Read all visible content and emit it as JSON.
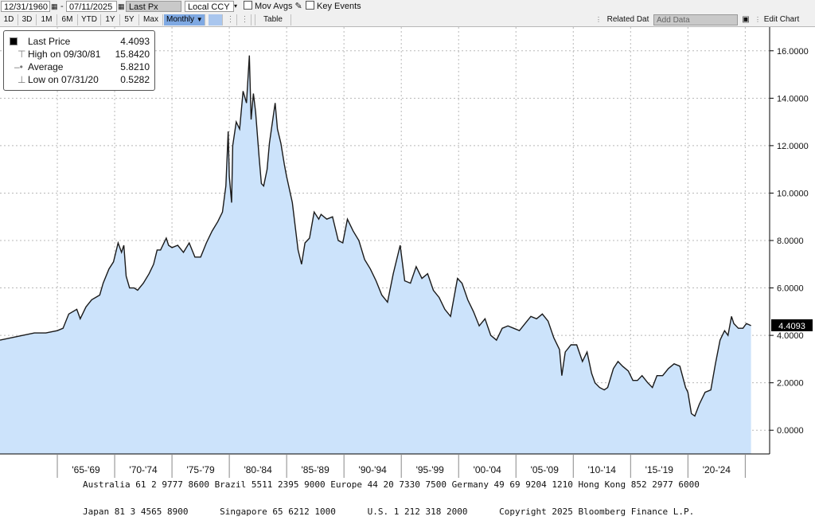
{
  "toolbar": {
    "start_date": "12/31/1960",
    "end_date": "07/11/2025",
    "separator": "-",
    "price_field": "Last Px",
    "currency": "Local CCY",
    "mov_avgs": "Mov Avgs",
    "key_events": "Key Events",
    "ranges": [
      "1D",
      "3D",
      "1M",
      "6M",
      "YTD",
      "1Y",
      "5Y",
      "Max"
    ],
    "frequency": "Monthly",
    "table_label": "Table",
    "related_data": "Related Dat",
    "add_data": "Add Data",
    "edit_chart": "Edit Chart"
  },
  "legend": {
    "last_price_label": "Last Price",
    "last_price_value": "4.4093",
    "high_label": "High on 09/30/81",
    "high_value": "15.8420",
    "average_label": "Average",
    "average_value": "5.8210",
    "low_label": "Low on 07/31/20",
    "low_value": "0.5282"
  },
  "footer": {
    "line1": "Australia 61 2 9777 8600 Brazil 5511 2395 9000 Europe 44 20 7330 7500 Germany 49 69 9204 1210 Hong Kong 852 2977 6000",
    "line2": "Japan 81 3 4565 8900      Singapore 65 6212 1000      U.S. 1 212 318 2000      Copyright 2025 Bloomberg Finance L.P."
  },
  "colors": {
    "area_fill": "#cce3fb",
    "line": "#1a1a1a",
    "grid": "#b8b8b8",
    "last_price_tag": "#000000"
  },
  "chart_data": {
    "type": "area",
    "title": "",
    "xlabel": "",
    "ylabel": "",
    "ylim": [
      -1,
      17
    ],
    "xlim": [
      1960.0,
      2025.6
    ],
    "grid": true,
    "legend_position": "top-left",
    "y_ticks": [
      "0.0000",
      "2.0000",
      "4.0000",
      "6.0000",
      "8.0000",
      "10.0000",
      "12.0000",
      "14.0000",
      "16.0000"
    ],
    "x_periods": [
      "'65-'69",
      "'70-'74",
      "'75-'79",
      "'80-'84",
      "'85-'89",
      "'90-'94",
      "'95-'99",
      "'00-'04",
      "'05-'09",
      "'10-'14",
      "'15-'19",
      "'20-'24"
    ],
    "last_price_tag": "4.4093",
    "series": [
      {
        "x": [
          1960.0,
          1961.0,
          1962.0,
          1963.0,
          1964.0,
          1965.0,
          1965.5,
          1966.0,
          1966.7,
          1967.0,
          1967.5,
          1968.0,
          1968.7,
          1969.0,
          1969.5,
          1969.9,
          1970.3,
          1970.6,
          1970.8,
          1971.0,
          1971.3,
          1971.7,
          1972.0,
          1972.5,
          1973.0,
          1973.4,
          1973.7,
          1974.0,
          1974.5,
          1974.7,
          1975.0,
          1975.5,
          1976.0,
          1976.5,
          1977.0,
          1977.5,
          1978.0,
          1978.5,
          1979.0,
          1979.4,
          1979.7,
          1979.9,
          1980.0,
          1980.2,
          1980.3,
          1980.6,
          1980.9,
          1981.2,
          1981.5,
          1981.75,
          1981.9,
          1982.1,
          1982.3,
          1982.6,
          1982.8,
          1983.0,
          1983.3,
          1983.5,
          1984.0,
          1984.2,
          1984.5,
          1984.8,
          1985.0,
          1985.5,
          1986.0,
          1986.3,
          1986.6,
          1987.0,
          1987.4,
          1987.8,
          1988.0,
          1988.5,
          1989.0,
          1989.5,
          1989.9,
          1990.3,
          1990.8,
          1991.3,
          1991.8,
          1992.3,
          1992.8,
          1993.3,
          1993.8,
          1994.3,
          1994.9,
          1995.3,
          1995.8,
          1996.3,
          1996.8,
          1997.3,
          1997.8,
          1998.3,
          1998.8,
          1999.3,
          1999.9,
          2000.3,
          2000.8,
          2001.3,
          2001.8,
          2002.3,
          2002.8,
          2003.3,
          2003.8,
          2004.3,
          2004.8,
          2005.3,
          2005.8,
          2006.3,
          2006.8,
          2007.3,
          2007.8,
          2008.3,
          2008.8,
          2009.0,
          2009.3,
          2009.8,
          2010.3,
          2010.8,
          2011.2,
          2011.6,
          2011.9,
          2012.3,
          2012.7,
          2013.0,
          2013.5,
          2013.9,
          2014.3,
          2014.8,
          2015.2,
          2015.6,
          2016.0,
          2016.5,
          2016.9,
          2017.3,
          2017.8,
          2018.3,
          2018.8,
          2019.3,
          2019.8,
          2020.0,
          2020.3,
          2020.6,
          2021.0,
          2021.5,
          2022.0,
          2022.4,
          2022.8,
          2023.2,
          2023.5,
          2023.8,
          2024.0,
          2024.4,
          2024.8,
          2025.1,
          2025.5
        ],
        "y": [
          3.8,
          3.9,
          4.0,
          4.1,
          4.1,
          4.2,
          4.3,
          4.9,
          5.1,
          4.7,
          5.2,
          5.5,
          5.7,
          6.2,
          6.8,
          7.1,
          7.9,
          7.5,
          7.8,
          6.5,
          6.0,
          6.0,
          5.9,
          6.2,
          6.6,
          7.0,
          7.6,
          7.6,
          8.1,
          7.8,
          7.7,
          7.8,
          7.5,
          7.9,
          7.3,
          7.3,
          7.9,
          8.4,
          8.8,
          9.2,
          10.3,
          12.6,
          10.7,
          9.6,
          12.0,
          13.0,
          12.7,
          14.3,
          13.8,
          15.8,
          13.1,
          14.2,
          13.4,
          11.5,
          10.4,
          10.3,
          11.0,
          12.1,
          13.8,
          12.7,
          12.1,
          11.2,
          10.7,
          9.6,
          7.6,
          7.0,
          7.9,
          8.1,
          9.2,
          8.9,
          9.1,
          8.9,
          9.0,
          8.0,
          7.9,
          8.9,
          8.4,
          8.0,
          7.2,
          6.8,
          6.3,
          5.7,
          5.4,
          6.6,
          7.8,
          6.3,
          6.2,
          6.9,
          6.4,
          6.6,
          5.9,
          5.6,
          5.1,
          4.8,
          6.4,
          6.2,
          5.5,
          5.0,
          4.4,
          4.7,
          4.0,
          3.8,
          4.3,
          4.4,
          4.3,
          4.2,
          4.5,
          4.8,
          4.7,
          4.9,
          4.6,
          3.9,
          3.4,
          2.3,
          3.3,
          3.6,
          3.6,
          2.9,
          3.3,
          2.4,
          2.0,
          1.8,
          1.7,
          1.8,
          2.6,
          2.9,
          2.7,
          2.5,
          2.1,
          2.1,
          2.3,
          2.0,
          1.8,
          2.3,
          2.3,
          2.6,
          2.8,
          2.7,
          1.8,
          1.6,
          0.7,
          0.6,
          1.1,
          1.6,
          1.7,
          2.8,
          3.8,
          4.2,
          4.0,
          4.8,
          4.5,
          4.3,
          4.3,
          4.5,
          4.41
        ]
      }
    ]
  }
}
